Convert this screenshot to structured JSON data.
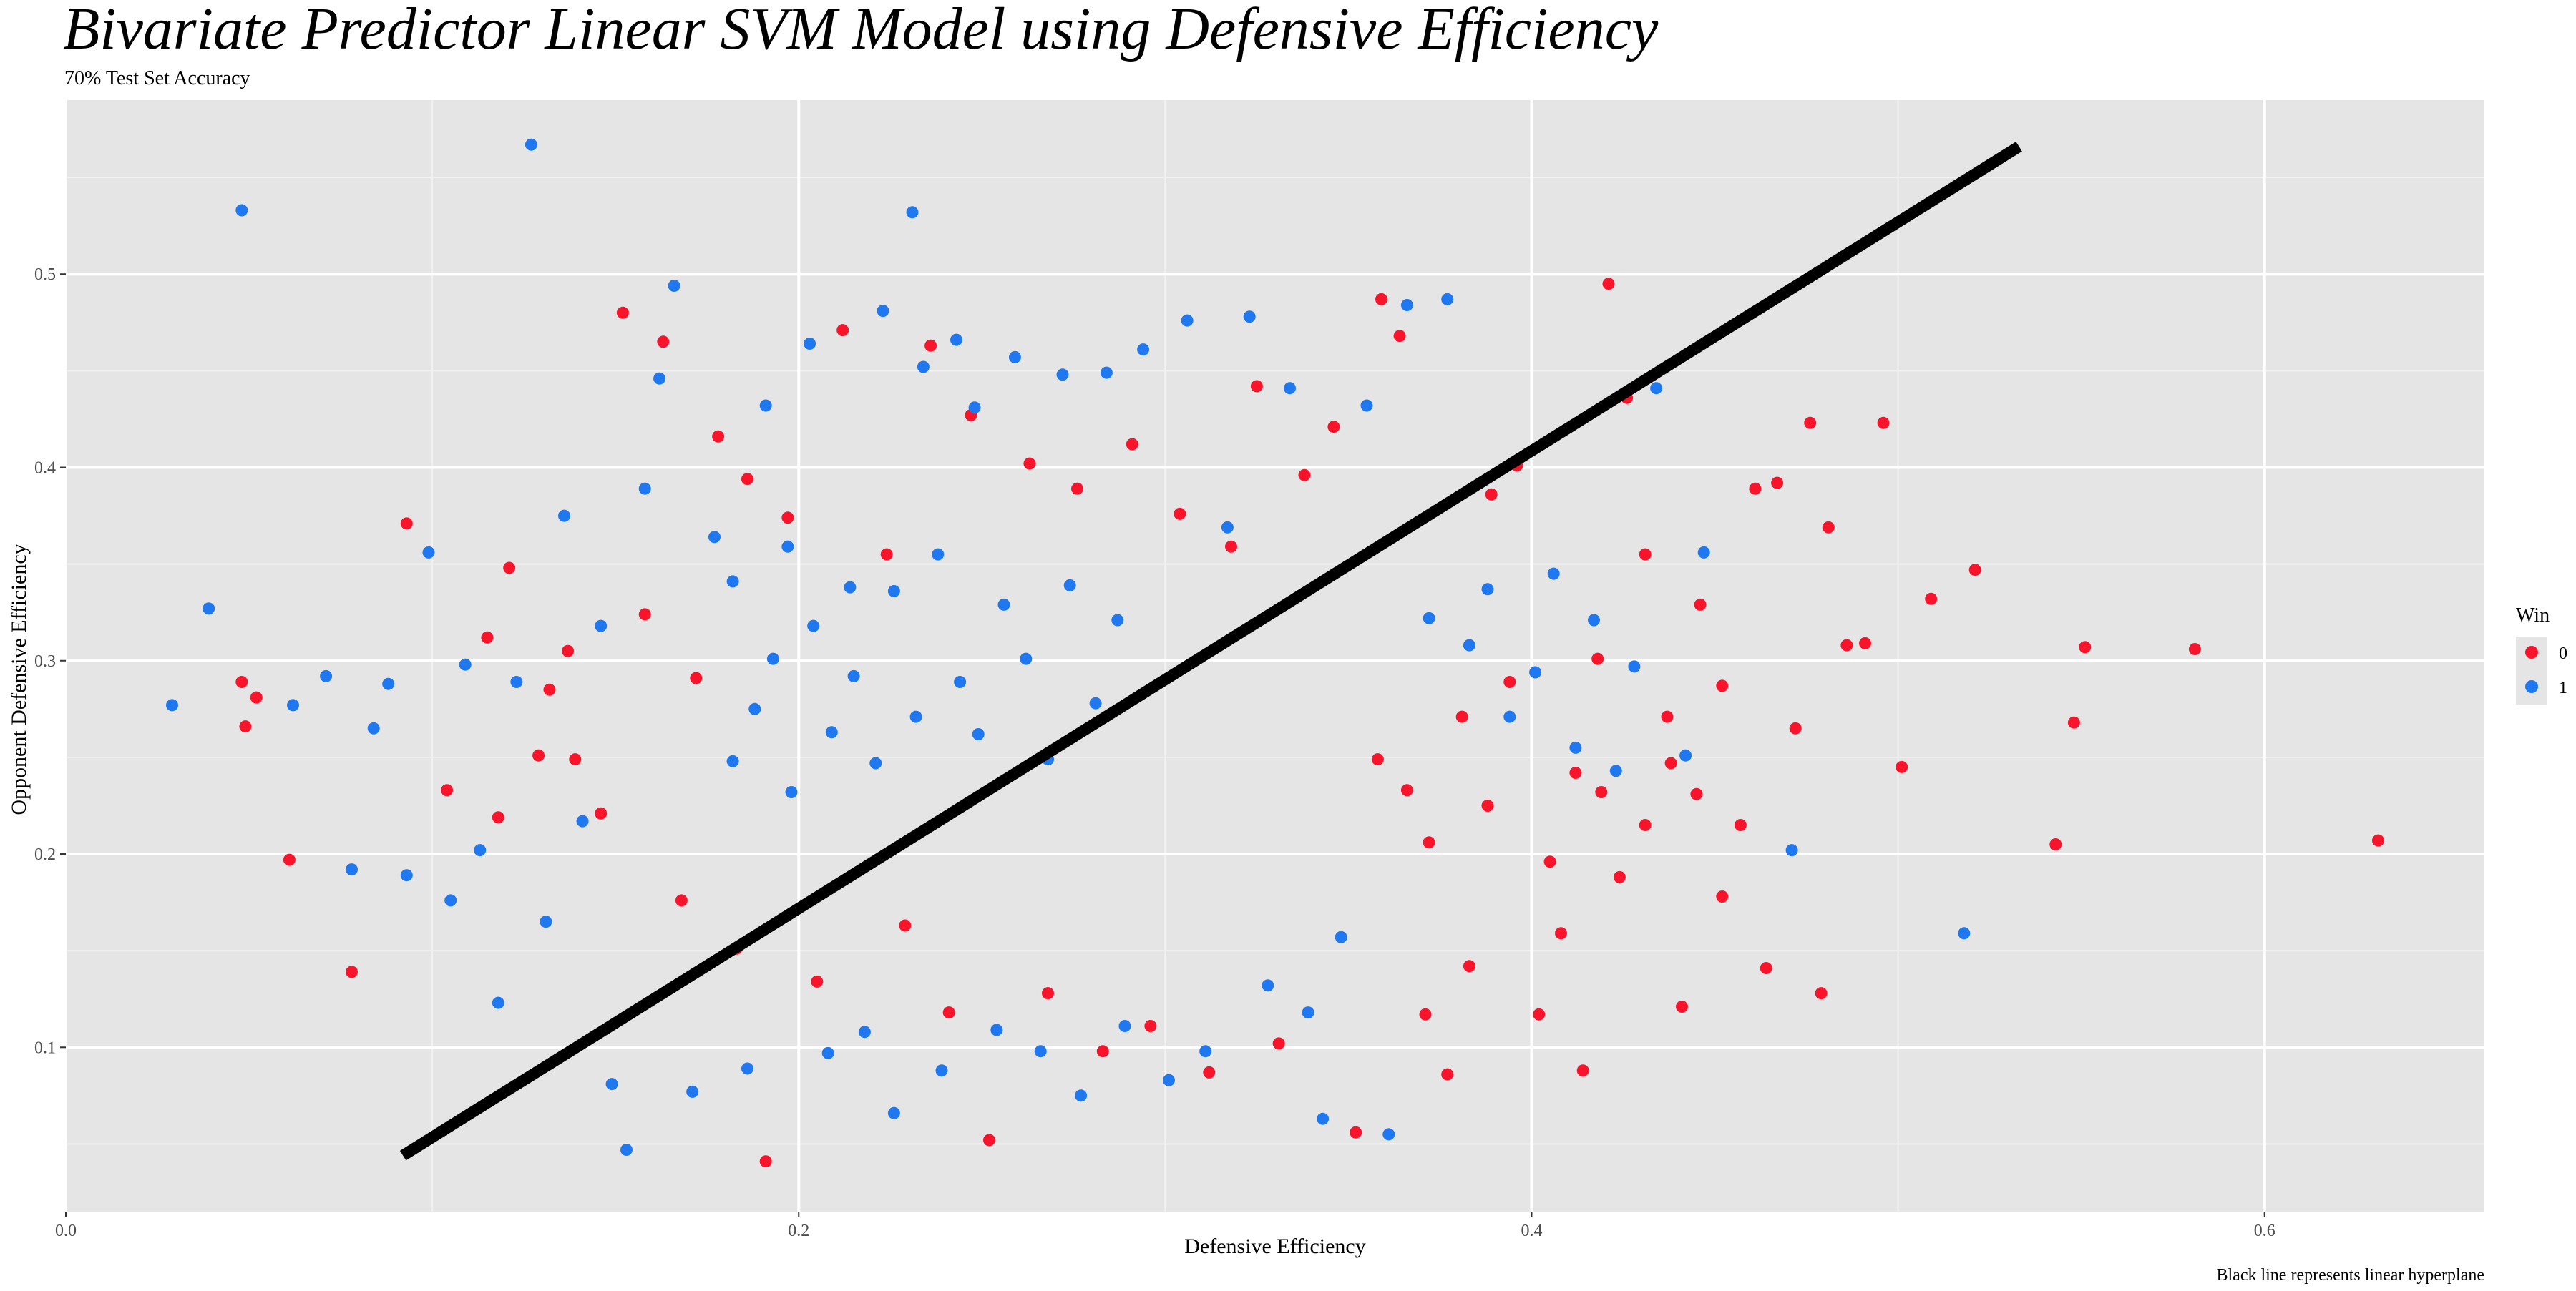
{
  "chart_data": {
    "type": "scatter",
    "title": "Bivariate Predictor Linear SVM Model using Defensive Efficiency",
    "subtitle": "70% Test Set Accuracy",
    "xlabel": "Defensive Efficiency",
    "ylabel": "Opponent Defensive Efficiency",
    "caption": "Black line represents linear hyperplane",
    "xlim": [
      0.0,
      0.66
    ],
    "ylim": [
      0.015,
      0.59
    ],
    "x_ticks": [
      0.0,
      0.2,
      0.4,
      0.6
    ],
    "x_tick_labels": [
      "0.0",
      "0.2",
      "0.4",
      "0.6"
    ],
    "y_ticks": [
      0.1,
      0.2,
      0.3,
      0.4,
      0.5
    ],
    "y_tick_labels": [
      "0.1",
      "0.2",
      "0.3",
      "0.4",
      "0.5"
    ],
    "grid": true,
    "panel_background": "#e5e5e5",
    "legend": {
      "title": "Win",
      "position": "right",
      "entries": [
        {
          "label": "0",
          "color": "#f8152b"
        },
        {
          "label": "1",
          "color": "#1f78f0"
        }
      ]
    },
    "hyperplane": {
      "color": "#000000",
      "points": [
        [
          0.092,
          0.044
        ],
        [
          0.533,
          0.566
        ]
      ]
    },
    "series": [
      {
        "name": "0",
        "color": "#f8152b",
        "points": [
          [
            0.048,
            0.289
          ],
          [
            0.049,
            0.266
          ],
          [
            0.052,
            0.281
          ],
          [
            0.061,
            0.197
          ],
          [
            0.078,
            0.139
          ],
          [
            0.093,
            0.371
          ],
          [
            0.104,
            0.233
          ],
          [
            0.115,
            0.312
          ],
          [
            0.118,
            0.219
          ],
          [
            0.121,
            0.348
          ],
          [
            0.129,
            0.251
          ],
          [
            0.132,
            0.285
          ],
          [
            0.137,
            0.305
          ],
          [
            0.139,
            0.249
          ],
          [
            0.146,
            0.221
          ],
          [
            0.152,
            0.48
          ],
          [
            0.158,
            0.324
          ],
          [
            0.163,
            0.465
          ],
          [
            0.168,
            0.176
          ],
          [
            0.172,
            0.291
          ],
          [
            0.178,
            0.416
          ],
          [
            0.183,
            0.151
          ],
          [
            0.186,
            0.394
          ],
          [
            0.191,
            0.041
          ],
          [
            0.197,
            0.374
          ],
          [
            0.205,
            0.134
          ],
          [
            0.212,
            0.471
          ],
          [
            0.224,
            0.355
          ],
          [
            0.229,
            0.163
          ],
          [
            0.236,
            0.463
          ],
          [
            0.241,
            0.118
          ],
          [
            0.247,
            0.427
          ],
          [
            0.252,
            0.052
          ],
          [
            0.263,
            0.402
          ],
          [
            0.268,
            0.128
          ],
          [
            0.276,
            0.389
          ],
          [
            0.283,
            0.098
          ],
          [
            0.291,
            0.412
          ],
          [
            0.296,
            0.111
          ],
          [
            0.304,
            0.376
          ],
          [
            0.312,
            0.087
          ],
          [
            0.318,
            0.359
          ],
          [
            0.325,
            0.442
          ],
          [
            0.331,
            0.102
          ],
          [
            0.338,
            0.396
          ],
          [
            0.346,
            0.421
          ],
          [
            0.352,
            0.056
          ],
          [
            0.359,
            0.487
          ],
          [
            0.364,
            0.468
          ],
          [
            0.371,
            0.117
          ],
          [
            0.377,
            0.086
          ],
          [
            0.383,
            0.142
          ],
          [
            0.389,
            0.386
          ],
          [
            0.396,
            0.401
          ],
          [
            0.402,
            0.117
          ],
          [
            0.408,
            0.159
          ],
          [
            0.414,
            0.088
          ],
          [
            0.419,
            0.232
          ],
          [
            0.421,
            0.495
          ],
          [
            0.426,
            0.436
          ],
          [
            0.431,
            0.355
          ],
          [
            0.437,
            0.271
          ],
          [
            0.441,
            0.121
          ],
          [
            0.446,
            0.329
          ],
          [
            0.452,
            0.287
          ],
          [
            0.457,
            0.215
          ],
          [
            0.461,
            0.389
          ],
          [
            0.464,
            0.141
          ],
          [
            0.467,
            0.392
          ],
          [
            0.472,
            0.265
          ],
          [
            0.476,
            0.423
          ],
          [
            0.479,
            0.128
          ],
          [
            0.481,
            0.369
          ],
          [
            0.486,
            0.308
          ],
          [
            0.491,
            0.309
          ],
          [
            0.496,
            0.423
          ],
          [
            0.501,
            0.245
          ],
          [
            0.509,
            0.332
          ],
          [
            0.521,
            0.347
          ],
          [
            0.543,
            0.205
          ],
          [
            0.548,
            0.268
          ],
          [
            0.551,
            0.307
          ],
          [
            0.581,
            0.306
          ],
          [
            0.631,
            0.207
          ],
          [
            0.358,
            0.249
          ],
          [
            0.366,
            0.233
          ],
          [
            0.372,
            0.206
          ],
          [
            0.381,
            0.271
          ],
          [
            0.388,
            0.225
          ],
          [
            0.394,
            0.289
          ],
          [
            0.405,
            0.196
          ],
          [
            0.412,
            0.242
          ],
          [
            0.418,
            0.301
          ],
          [
            0.424,
            0.188
          ],
          [
            0.431,
            0.215
          ],
          [
            0.438,
            0.247
          ],
          [
            0.445,
            0.231
          ],
          [
            0.452,
            0.178
          ]
        ]
      },
      {
        "name": "1",
        "color": "#1f78f0",
        "points": [
          [
            0.029,
            0.277
          ],
          [
            0.039,
            0.327
          ],
          [
            0.048,
            0.533
          ],
          [
            0.062,
            0.277
          ],
          [
            0.071,
            0.292
          ],
          [
            0.078,
            0.192
          ],
          [
            0.084,
            0.265
          ],
          [
            0.088,
            0.288
          ],
          [
            0.093,
            0.189
          ],
          [
            0.099,
            0.356
          ],
          [
            0.105,
            0.176
          ],
          [
            0.109,
            0.298
          ],
          [
            0.113,
            0.202
          ],
          [
            0.118,
            0.123
          ],
          [
            0.123,
            0.289
          ],
          [
            0.127,
            0.567
          ],
          [
            0.131,
            0.165
          ],
          [
            0.136,
            0.375
          ],
          [
            0.141,
            0.217
          ],
          [
            0.146,
            0.318
          ],
          [
            0.149,
            0.081
          ],
          [
            0.153,
            0.047
          ],
          [
            0.158,
            0.389
          ],
          [
            0.162,
            0.446
          ],
          [
            0.166,
            0.494
          ],
          [
            0.171,
            0.077
          ],
          [
            0.177,
            0.364
          ],
          [
            0.182,
            0.341
          ],
          [
            0.186,
            0.089
          ],
          [
            0.191,
            0.432
          ],
          [
            0.197,
            0.359
          ],
          [
            0.203,
            0.464
          ],
          [
            0.208,
            0.097
          ],
          [
            0.214,
            0.338
          ],
          [
            0.218,
            0.108
          ],
          [
            0.223,
            0.481
          ],
          [
            0.226,
            0.066
          ],
          [
            0.231,
            0.532
          ],
          [
            0.234,
            0.452
          ],
          [
            0.239,
            0.088
          ],
          [
            0.243,
            0.466
          ],
          [
            0.248,
            0.431
          ],
          [
            0.254,
            0.109
          ],
          [
            0.259,
            0.457
          ],
          [
            0.266,
            0.098
          ],
          [
            0.272,
            0.448
          ],
          [
            0.277,
            0.075
          ],
          [
            0.284,
            0.449
          ],
          [
            0.289,
            0.111
          ],
          [
            0.294,
            0.461
          ],
          [
            0.301,
            0.083
          ],
          [
            0.306,
            0.476
          ],
          [
            0.311,
            0.098
          ],
          [
            0.317,
            0.369
          ],
          [
            0.323,
            0.478
          ],
          [
            0.328,
            0.132
          ],
          [
            0.334,
            0.441
          ],
          [
            0.339,
            0.118
          ],
          [
            0.343,
            0.063
          ],
          [
            0.348,
            0.157
          ],
          [
            0.355,
            0.432
          ],
          [
            0.361,
            0.055
          ],
          [
            0.366,
            0.484
          ],
          [
            0.372,
            0.322
          ],
          [
            0.377,
            0.487
          ],
          [
            0.383,
            0.308
          ],
          [
            0.388,
            0.337
          ],
          [
            0.394,
            0.271
          ],
          [
            0.401,
            0.294
          ],
          [
            0.406,
            0.345
          ],
          [
            0.412,
            0.255
          ],
          [
            0.417,
            0.321
          ],
          [
            0.423,
            0.243
          ],
          [
            0.428,
            0.297
          ],
          [
            0.434,
            0.441
          ],
          [
            0.442,
            0.251
          ],
          [
            0.447,
            0.356
          ],
          [
            0.471,
            0.202
          ],
          [
            0.518,
            0.159
          ],
          [
            0.182,
            0.248
          ],
          [
            0.188,
            0.275
          ],
          [
            0.193,
            0.301
          ],
          [
            0.198,
            0.232
          ],
          [
            0.204,
            0.318
          ],
          [
            0.209,
            0.263
          ],
          [
            0.215,
            0.292
          ],
          [
            0.221,
            0.247
          ],
          [
            0.226,
            0.336
          ],
          [
            0.232,
            0.271
          ],
          [
            0.238,
            0.355
          ],
          [
            0.244,
            0.289
          ],
          [
            0.249,
            0.262
          ],
          [
            0.256,
            0.329
          ],
          [
            0.262,
            0.301
          ],
          [
            0.268,
            0.249
          ],
          [
            0.274,
            0.339
          ],
          [
            0.281,
            0.278
          ],
          [
            0.287,
            0.321
          ]
        ]
      }
    ]
  }
}
